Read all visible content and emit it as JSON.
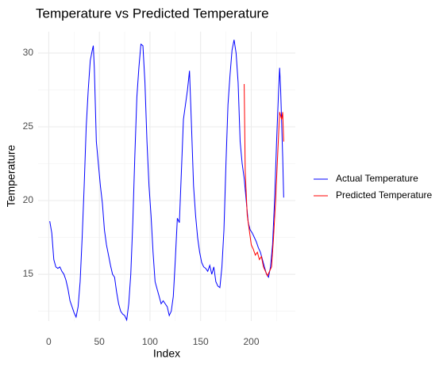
{
  "chart_data": {
    "type": "line",
    "title": "Temperature vs Predicted Temperature",
    "x_label": "Index",
    "y_label": "Temperature",
    "xlim": [
      -10.5,
      243.5
    ],
    "ylim": [
      11.83,
      31.45
    ],
    "xticks": [
      0,
      50,
      100,
      150,
      200
    ],
    "yticks": [
      15,
      20,
      25,
      30
    ],
    "grid": true,
    "legend": "right",
    "series": [
      {
        "name": "Actual Temperature",
        "color": "#0000ff",
        "x": [
          1,
          3,
          5,
          7,
          9,
          11,
          13,
          15,
          17,
          19,
          21,
          23,
          25,
          27,
          29,
          31,
          33,
          35,
          37,
          39,
          41,
          43,
          44,
          45,
          47,
          49,
          51,
          53,
          55,
          57,
          59,
          61,
          63,
          65,
          67,
          69,
          71,
          73,
          75,
          77,
          79,
          81,
          83,
          85,
          87,
          89,
          91,
          93,
          95,
          97,
          99,
          101,
          103,
          105,
          107,
          109,
          111,
          113,
          115,
          117,
          119,
          121,
          123,
          125,
          127,
          129,
          131,
          133,
          135,
          137,
          139,
          141,
          143,
          145,
          147,
          149,
          151,
          153,
          155,
          157,
          159,
          161,
          163,
          165,
          167,
          169,
          171,
          173,
          175,
          177,
          179,
          181,
          183,
          185,
          187,
          189,
          191,
          193,
          195,
          197,
          199,
          201,
          203,
          205,
          207,
          209,
          211,
          213,
          215,
          217,
          219,
          221,
          223,
          225,
          227,
          228,
          229,
          231,
          232
        ],
        "values": [
          18.6,
          17.8,
          16.0,
          15.5,
          15.4,
          15.5,
          15.2,
          15.0,
          14.6,
          14.0,
          13.2,
          12.8,
          12.4,
          12.1,
          12.8,
          14.5,
          17.5,
          21.0,
          25.0,
          27.5,
          29.5,
          30.2,
          30.5,
          29.0,
          24.0,
          22.5,
          21.0,
          19.8,
          18.0,
          17.0,
          16.3,
          15.6,
          15.0,
          14.8,
          13.8,
          13.0,
          12.5,
          12.3,
          12.2,
          11.9,
          13.0,
          15.0,
          18.5,
          23.0,
          27.0,
          29.0,
          30.6,
          30.5,
          28.0,
          24.0,
          21.0,
          19.0,
          16.5,
          14.5,
          14.0,
          13.5,
          13.0,
          13.2,
          13.0,
          12.8,
          12.2,
          12.5,
          13.5,
          16.0,
          18.8,
          18.5,
          22.0,
          25.5,
          26.5,
          27.5,
          28.8,
          25.0,
          21.0,
          19.0,
          17.5,
          16.5,
          15.8,
          15.5,
          15.4,
          15.2,
          15.6,
          15.0,
          15.5,
          14.5,
          14.2,
          14.1,
          15.5,
          18.0,
          22.5,
          26.5,
          28.5,
          30.2,
          30.9,
          30.0,
          28.0,
          24.0,
          22.5,
          21.5,
          20.0,
          18.5,
          18.0,
          17.8,
          17.5,
          17.2,
          16.8,
          16.5,
          16.0,
          15.5,
          15.0,
          14.8,
          15.5,
          17.0,
          20.0,
          24.0,
          27.5,
          29.0,
          27.5,
          23.0,
          20.2
        ]
      },
      {
        "name": "Predicted Temperature",
        "color": "#ff0000",
        "x": [
          193,
          194,
          196,
          198,
          200,
          202,
          204,
          206,
          208,
          210,
          212,
          214,
          216,
          218,
          220,
          222,
          224,
          226,
          228,
          230,
          231,
          232
        ],
        "values": [
          27.9,
          22.0,
          19.0,
          18.0,
          17.0,
          16.7,
          16.3,
          16.5,
          16.0,
          16.2,
          15.5,
          15.2,
          14.9,
          15.2,
          15.5,
          17.5,
          20.0,
          23.0,
          26.0,
          25.5,
          26.0,
          24.0
        ]
      }
    ]
  }
}
